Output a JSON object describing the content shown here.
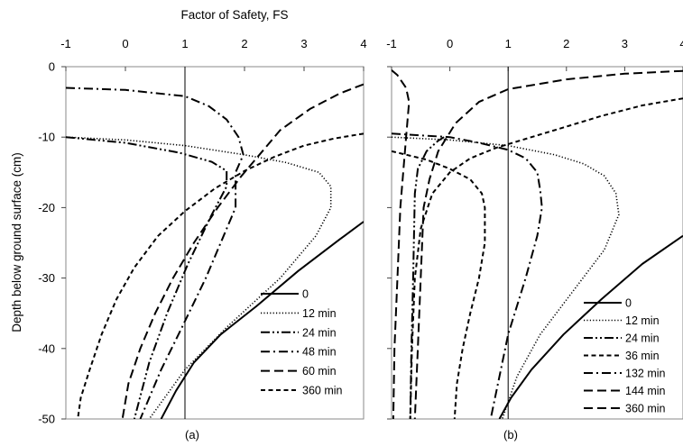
{
  "figure": {
    "top_axis_label": "Factor of Safety, FS",
    "y_axis_label": "Depth below ground surface (cm)"
  },
  "chart_data": [
    {
      "type": "line",
      "panel_label": "(a)",
      "xlim": [
        -1,
        4
      ],
      "ylim": [
        -50,
        0
      ],
      "x_ticks": [
        "-1",
        "0",
        "1",
        "2",
        "3",
        "4"
      ],
      "y_ticks": [
        "0",
        "-10",
        "-20",
        "-30",
        "-40",
        "-50"
      ],
      "x_axis_position": "top",
      "grid": false,
      "reference_line_x": 1,
      "legend_position": "bottom-right",
      "series": [
        {
          "name": "0",
          "style": "solid",
          "points": [
            [
              0.6,
              -50
            ],
            [
              0.85,
              -46
            ],
            [
              1.15,
              -42
            ],
            [
              1.6,
              -38
            ],
            [
              2.2,
              -34
            ],
            [
              2.9,
              -29
            ],
            [
              3.6,
              -24.5
            ],
            [
              4,
              -22
            ]
          ]
        },
        {
          "name": "12 min",
          "style": "dotted",
          "points": [
            [
              -1,
              -10
            ],
            [
              0,
              -10.4
            ],
            [
              1,
              -11.2
            ],
            [
              2,
              -12.5
            ],
            [
              2.7,
              -13.6
            ],
            [
              3.25,
              -15
            ],
            [
              3.45,
              -17
            ],
            [
              3.45,
              -20
            ],
            [
              3.2,
              -24
            ],
            [
              2.6,
              -30
            ],
            [
              1.7,
              -37
            ],
            [
              1.0,
              -43
            ],
            [
              0.4,
              -50
            ]
          ]
        },
        {
          "name": "24 min",
          "style": "dashdotdot",
          "points": [
            [
              -1,
              -10
            ],
            [
              0,
              -10.8
            ],
            [
              0.9,
              -12.2
            ],
            [
              1.45,
              -13.5
            ],
            [
              1.7,
              -14.8
            ],
            [
              1.7,
              -17
            ],
            [
              1.45,
              -21
            ],
            [
              1.05,
              -28
            ],
            [
              0.7,
              -35
            ],
            [
              0.4,
              -42
            ],
            [
              0.15,
              -50
            ]
          ]
        },
        {
          "name": "48 min",
          "style": "dashdot",
          "points": [
            [
              -1,
              -3
            ],
            [
              0,
              -3.3
            ],
            [
              1,
              -4.2
            ],
            [
              1.4,
              -5.6
            ],
            [
              1.7,
              -7.5
            ],
            [
              1.9,
              -10
            ],
            [
              1.98,
              -12.5
            ],
            [
              1.85,
              -15
            ],
            [
              1.85,
              -20
            ],
            [
              1.65,
              -24
            ],
            [
              1.35,
              -30
            ],
            [
              0.95,
              -37
            ],
            [
              0.6,
              -43
            ],
            [
              0.25,
              -50
            ]
          ]
        },
        {
          "name": "60 min",
          "style": "dash",
          "points": [
            [
              4,
              -2.5
            ],
            [
              3.6,
              -3.8
            ],
            [
              3.1,
              -6
            ],
            [
              2.6,
              -9
            ],
            [
              2.25,
              -12.5
            ],
            [
              1.95,
              -15.5
            ],
            [
              1.55,
              -20
            ],
            [
              1.15,
              -25
            ],
            [
              0.8,
              -30
            ],
            [
              0.5,
              -35
            ],
            [
              0.25,
              -40
            ],
            [
              0.05,
              -45
            ],
            [
              -0.05,
              -50
            ]
          ]
        },
        {
          "name": "360 min",
          "style": "shortdash",
          "points": [
            [
              4,
              -9.5
            ],
            [
              3.5,
              -10.2
            ],
            [
              3,
              -11.2
            ],
            [
              2.5,
              -12.8
            ],
            [
              2,
              -14.8
            ],
            [
              1.5,
              -17.3
            ],
            [
              1,
              -20.5
            ],
            [
              0.55,
              -24
            ],
            [
              0.15,
              -28.5
            ],
            [
              -0.15,
              -33
            ],
            [
              -0.4,
              -38
            ],
            [
              -0.6,
              -43
            ],
            [
              -0.75,
              -47
            ],
            [
              -0.8,
              -50
            ]
          ]
        }
      ]
    },
    {
      "type": "line",
      "panel_label": "(b)",
      "xlim": [
        -1,
        4
      ],
      "ylim": [
        -50,
        0
      ],
      "x_ticks": [
        "-1",
        "0",
        "1",
        "2",
        "3",
        "4"
      ],
      "y_ticks": [
        "0",
        "-10",
        "-20",
        "-30",
        "-40",
        "-50"
      ],
      "x_axis_position": "top",
      "grid": false,
      "reference_line_x": 1,
      "legend_position": "bottom-right",
      "series": [
        {
          "name": "0",
          "style": "solid",
          "points": [
            [
              0.85,
              -50
            ],
            [
              1.05,
              -47
            ],
            [
              1.4,
              -43
            ],
            [
              1.95,
              -38
            ],
            [
              2.6,
              -33
            ],
            [
              3.3,
              -28
            ],
            [
              4,
              -24
            ]
          ]
        },
        {
          "name": "12 min",
          "style": "dotted",
          "points": [
            [
              -1,
              -10
            ],
            [
              0,
              -10.4
            ],
            [
              1,
              -11.2
            ],
            [
              1.8,
              -12.5
            ],
            [
              2.3,
              -13.8
            ],
            [
              2.65,
              -15.5
            ],
            [
              2.85,
              -18
            ],
            [
              2.9,
              -21
            ],
            [
              2.65,
              -26
            ],
            [
              2.1,
              -32
            ],
            [
              1.55,
              -38
            ],
            [
              1.15,
              -44
            ],
            [
              0.9,
              -50
            ]
          ]
        },
        {
          "name": "24 min",
          "style": "dashdotdot",
          "points": [
            [
              -0.1,
              -10
            ],
            [
              -0.2,
              -10.5
            ],
            [
              -0.4,
              -12
            ],
            [
              -0.55,
              -14.5
            ],
            [
              -0.6,
              -18
            ],
            [
              -0.63,
              -30
            ],
            [
              -0.66,
              -40
            ],
            [
              -0.68,
              -50
            ]
          ]
        },
        {
          "name": "36 min",
          "style": "shortdash",
          "points": [
            [
              -1,
              -12
            ],
            [
              -0.4,
              -13.2
            ],
            [
              0,
              -14.5
            ],
            [
              0.35,
              -16
            ],
            [
              0.55,
              -18
            ],
            [
              0.6,
              -20
            ],
            [
              0.6,
              -25
            ],
            [
              0.5,
              -30
            ],
            [
              0.35,
              -35
            ],
            [
              0.22,
              -40
            ],
            [
              0.12,
              -45
            ],
            [
              0.08,
              -50
            ]
          ]
        },
        {
          "name": "132 min",
          "style": "dashdot",
          "points": [
            [
              -1,
              -9.5
            ],
            [
              0,
              -10
            ],
            [
              0.5,
              -10.8
            ],
            [
              1,
              -11.8
            ],
            [
              1.3,
              -13
            ],
            [
              1.5,
              -15
            ],
            [
              1.55,
              -17.5
            ],
            [
              1.58,
              -20
            ],
            [
              1.5,
              -24
            ],
            [
              1.3,
              -30
            ],
            [
              1.0,
              -38
            ],
            [
              0.85,
              -44
            ],
            [
              0.7,
              -50
            ]
          ]
        },
        {
          "name": "144 min",
          "style": "dash",
          "points": [
            [
              -1,
              -0.5
            ],
            [
              -0.9,
              -1.2
            ],
            [
              -0.75,
              -3
            ],
            [
              -0.7,
              -5
            ],
            [
              -0.75,
              -10
            ],
            [
              -0.85,
              -20
            ],
            [
              -0.9,
              -30
            ],
            [
              -0.95,
              -40
            ],
            [
              -0.97,
              -50
            ]
          ]
        },
        {
          "name": "360 min",
          "style": "dash",
          "points": [
            [
              4,
              -0.6
            ],
            [
              3,
              -1
            ],
            [
              2,
              -1.8
            ],
            [
              1,
              -3.2
            ],
            [
              0.5,
              -5
            ],
            [
              0.1,
              -8
            ],
            [
              -0.2,
              -12
            ],
            [
              -0.35,
              -16
            ],
            [
              -0.45,
              -20
            ],
            [
              -0.5,
              -30
            ],
            [
              -0.55,
              -40
            ],
            [
              -0.6,
              -50
            ]
          ]
        },
        {
          "name": "",
          "style": "shortdash",
          "points": [
            [
              4,
              -4.5
            ],
            [
              3.3,
              -5.5
            ],
            [
              2.6,
              -7
            ],
            [
              2,
              -8.5
            ],
            [
              1.4,
              -10
            ],
            [
              0.8,
              -11.5
            ],
            [
              0.35,
              -13
            ],
            [
              0,
              -15
            ],
            [
              -0.3,
              -18
            ],
            [
              -0.5,
              -23
            ],
            [
              -0.6,
              -30
            ],
            [
              -0.65,
              -40
            ],
            [
              -0.68,
              -50
            ]
          ]
        }
      ]
    }
  ]
}
